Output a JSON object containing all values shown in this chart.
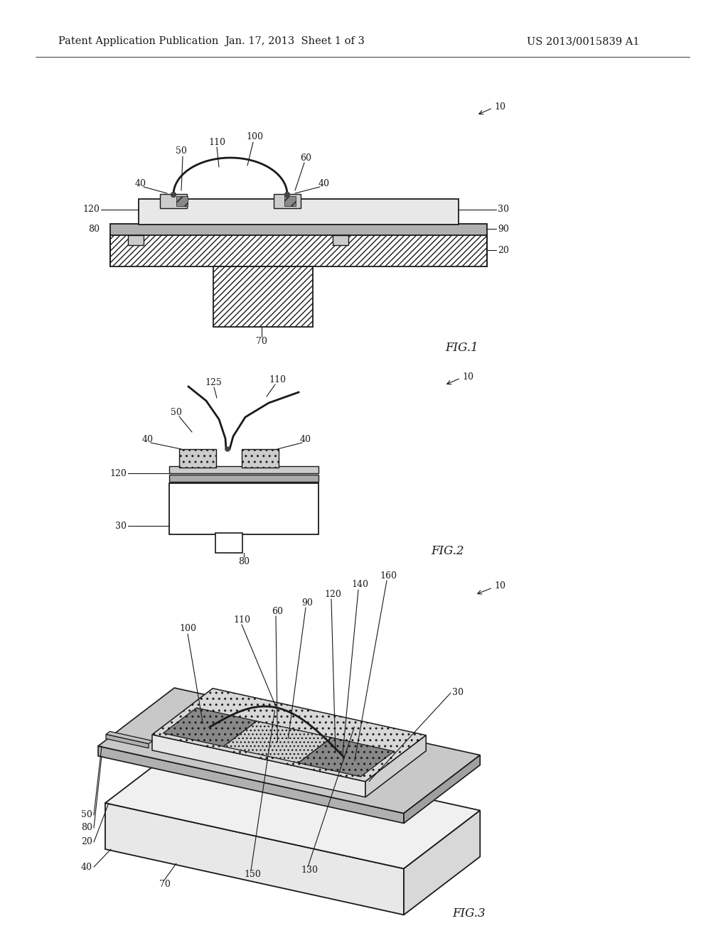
{
  "bg_color": "#ffffff",
  "header_left": "Patent Application Publication",
  "header_mid": "Jan. 17, 2013  Sheet 1 of 3",
  "header_right": "US 2013/0015839 A1",
  "fig1_label": "FIG.1",
  "fig2_label": "FIG.2",
  "fig3_label": "FIG.3",
  "lc": "#1a1a1a"
}
